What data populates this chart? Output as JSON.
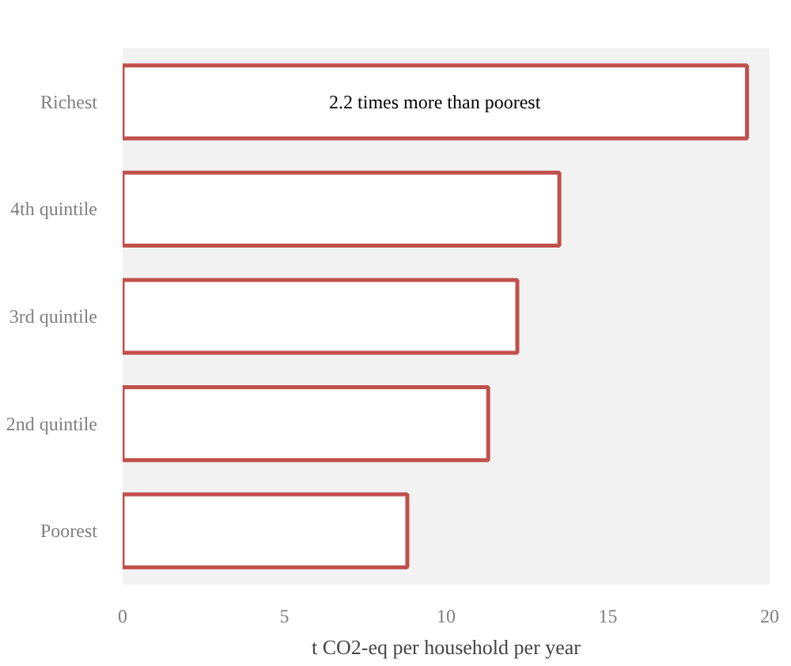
{
  "chart_data": {
    "type": "bar",
    "orientation": "horizontal",
    "xlabel": "t CO2-eq per household per year",
    "categories": [
      "Richest",
      "4th quintile",
      "3rd quintile",
      "2nd quintile",
      "Poorest"
    ],
    "values": [
      19.3,
      13.5,
      12.2,
      11.3,
      8.8
    ],
    "color": "#c0504d",
    "xlim": [
      0,
      20
    ],
    "xticks": [
      0,
      5,
      10,
      15,
      20
    ],
    "grid": false,
    "annotations": [
      "2.2 times more than poorest"
    ]
  }
}
